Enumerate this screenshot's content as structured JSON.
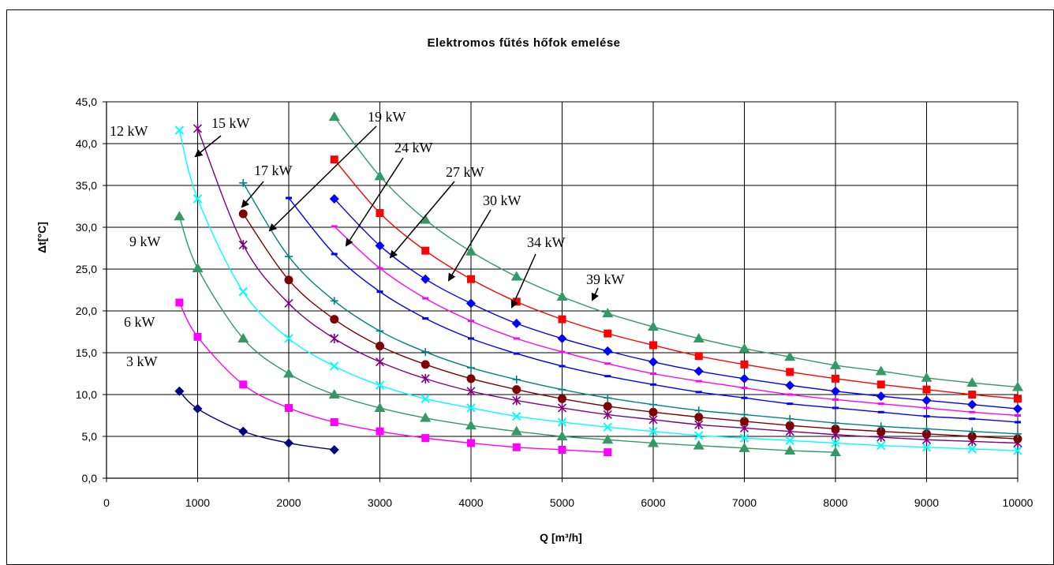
{
  "chart_data": {
    "type": "line",
    "title": "Elektromos fűtés hőfok emelése",
    "xlabel": "Q [m³/h]",
    "ylabel": "Δt[°C]",
    "xlim": [
      0,
      10000
    ],
    "ylim": [
      0,
      45
    ],
    "x_ticks": [
      "0",
      "1000",
      "2000",
      "3000",
      "4000",
      "5000",
      "6000",
      "7000",
      "8000",
      "9000",
      "10000"
    ],
    "y_ticks": [
      "0,0",
      "5,0",
      "10,0",
      "15,0",
      "20,0",
      "25,0",
      "30,0",
      "35,0",
      "40,0",
      "45,0"
    ],
    "grid": true,
    "legend": "none",
    "series": [
      {
        "name": "3 kW",
        "color": "#000080",
        "marker": "diamond",
        "x": [
          800,
          1000,
          1500,
          2000,
          2500
        ],
        "y": [
          10.4,
          8.3,
          5.6,
          4.2,
          3.4
        ]
      },
      {
        "name": "6 kW",
        "color": "#ff00ff",
        "marker": "square",
        "x": [
          800,
          1000,
          1500,
          2000,
          2500,
          3000,
          3500,
          4000,
          4500,
          5000,
          5500
        ],
        "y": [
          21.0,
          16.9,
          11.2,
          8.4,
          6.7,
          5.6,
          4.8,
          4.2,
          3.7,
          3.4,
          3.1
        ]
      },
      {
        "name": "9 kW",
        "color": "#339966",
        "marker": "triangle",
        "x": [
          800,
          1000,
          1500,
          2000,
          2500,
          3000,
          3500,
          4000,
          4500,
          5000,
          5500,
          6000,
          6500,
          7000,
          7500,
          8000
        ],
        "y": [
          31.3,
          25.1,
          16.7,
          12.5,
          10.0,
          8.4,
          7.2,
          6.3,
          5.6,
          5.0,
          4.6,
          4.2,
          3.9,
          3.6,
          3.3,
          3.1
        ]
      },
      {
        "name": "12 kW",
        "color": "#00ffff",
        "marker": "x",
        "x": [
          800,
          1000,
          1500,
          2000,
          2500,
          3000,
          3500,
          4000,
          4500,
          5000,
          5500,
          6000,
          6500,
          7000,
          7500,
          8000,
          8500,
          9000,
          9500,
          10000
        ],
        "y": [
          41.6,
          33.4,
          22.3,
          16.7,
          13.4,
          11.1,
          9.5,
          8.4,
          7.4,
          6.7,
          6.1,
          5.6,
          5.1,
          4.8,
          4.5,
          4.2,
          3.9,
          3.7,
          3.5,
          3.3
        ]
      },
      {
        "name": "15 kW",
        "color": "#800080",
        "marker": "star",
        "x": [
          1000,
          1500,
          2000,
          2500,
          3000,
          3500,
          4000,
          4500,
          5000,
          5500,
          6000,
          6500,
          7000,
          7500,
          8000,
          8500,
          9000,
          9500,
          10000
        ],
        "y": [
          41.8,
          27.9,
          20.9,
          16.7,
          13.9,
          11.9,
          10.4,
          9.3,
          8.4,
          7.6,
          7.0,
          6.4,
          6.0,
          5.6,
          5.2,
          4.9,
          4.6,
          4.4,
          4.2
        ]
      },
      {
        "name": "17 kW",
        "color": "#800000",
        "marker": "circle",
        "x": [
          1500,
          2000,
          2500,
          3000,
          3500,
          4000,
          4500,
          5000,
          5500,
          6000,
          6500,
          7000,
          7500,
          8000,
          8500,
          9000,
          9500,
          10000
        ],
        "y": [
          31.6,
          23.7,
          19.0,
          15.8,
          13.6,
          11.9,
          10.6,
          9.5,
          8.6,
          7.9,
          7.3,
          6.8,
          6.3,
          5.9,
          5.6,
          5.3,
          5.0,
          4.7
        ]
      },
      {
        "name": "19 kW",
        "color": "#008080",
        "marker": "plus",
        "x": [
          1500,
          2000,
          2500,
          3000,
          3500,
          4000,
          4500,
          5000,
          5500,
          6000,
          6500,
          7000,
          7500,
          8000,
          8500,
          9000,
          9500,
          10000
        ],
        "y": [
          35.3,
          26.5,
          21.2,
          17.6,
          15.1,
          13.2,
          11.8,
          10.6,
          9.6,
          8.8,
          8.1,
          7.6,
          7.1,
          6.6,
          6.2,
          5.9,
          5.6,
          5.3
        ]
      },
      {
        "name": "24 kW",
        "color": "#0000ff",
        "marker": "dash",
        "x": [
          2000,
          2500,
          3000,
          3500,
          4000,
          4500,
          5000,
          5500,
          6000,
          6500,
          7000,
          7500,
          8000,
          8500,
          9000,
          9500,
          10000
        ],
        "y": [
          33.5,
          26.8,
          22.3,
          19.1,
          16.7,
          14.9,
          13.4,
          12.2,
          11.2,
          10.3,
          9.6,
          8.9,
          8.4,
          7.9,
          7.4,
          7.1,
          6.7
        ]
      },
      {
        "name": "27 kW",
        "color": "#ff00ff",
        "marker": "dash",
        "x": [
          2500,
          3000,
          3500,
          4000,
          4500,
          5000,
          5500,
          6000,
          6500,
          7000,
          7500,
          8000,
          8500,
          9000,
          9500,
          10000
        ],
        "y": [
          30.1,
          25.1,
          21.5,
          18.8,
          16.7,
          15.1,
          13.7,
          12.5,
          11.6,
          10.8,
          10.0,
          9.4,
          8.9,
          8.4,
          7.9,
          7.5
        ]
      },
      {
        "name": "30 kW",
        "color": "#0000ff",
        "marker": "diamond",
        "x": [
          2500,
          3000,
          3500,
          4000,
          4500,
          5000,
          5500,
          6000,
          6500,
          7000,
          7500,
          8000,
          8500,
          9000,
          9500,
          10000
        ],
        "y": [
          33.4,
          27.8,
          23.8,
          20.9,
          18.5,
          16.7,
          15.2,
          13.9,
          12.8,
          11.9,
          11.1,
          10.4,
          9.8,
          9.3,
          8.8,
          8.3
        ]
      },
      {
        "name": "34 kW",
        "color": "#ff0000",
        "marker": "square",
        "x": [
          2500,
          3000,
          3500,
          4000,
          4500,
          5000,
          5500,
          6000,
          6500,
          7000,
          7500,
          8000,
          8500,
          9000,
          9500,
          10000
        ],
        "y": [
          38.1,
          31.7,
          27.2,
          23.8,
          21.1,
          19.0,
          17.3,
          15.9,
          14.6,
          13.6,
          12.7,
          11.9,
          11.2,
          10.6,
          10.0,
          9.5
        ]
      },
      {
        "name": "39 kW",
        "color": "#339966",
        "marker": "triangle",
        "x": [
          2500,
          3000,
          3500,
          4000,
          4500,
          5000,
          5500,
          6000,
          6500,
          7000,
          7500,
          8000,
          8500,
          9000,
          9500,
          10000
        ],
        "y": [
          43.2,
          36.1,
          30.9,
          27.1,
          24.1,
          21.7,
          19.7,
          18.1,
          16.7,
          15.5,
          14.5,
          13.5,
          12.8,
          12.0,
          11.4,
          10.9
        ]
      }
    ],
    "annotations": [
      {
        "text": "3 kW"
      },
      {
        "text": "6 kW"
      },
      {
        "text": "9 kW"
      },
      {
        "text": "12 kW"
      },
      {
        "text": "15 kW"
      },
      {
        "text": "17 kW"
      },
      {
        "text": "19 kW"
      },
      {
        "text": "24 kW"
      },
      {
        "text": "27 kW"
      },
      {
        "text": "30 kW"
      },
      {
        "text": "34 kW"
      },
      {
        "text": "39 kW"
      }
    ]
  }
}
